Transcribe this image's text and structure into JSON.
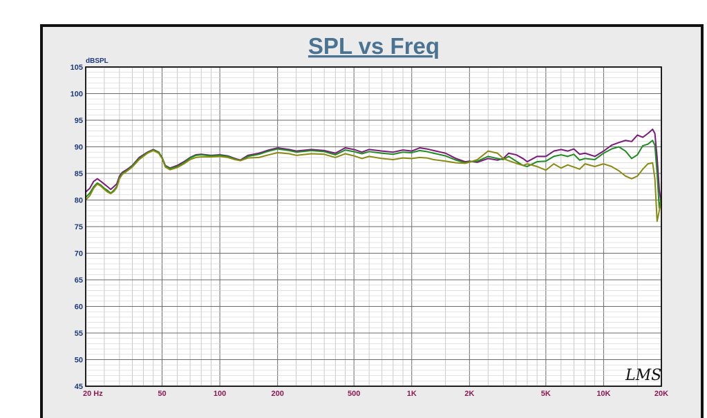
{
  "chart_data": {
    "type": "line",
    "title": "SPL vs Freq",
    "ylabel": "dBSPL",
    "xlabel": "",
    "xscale": "log",
    "xlim": [
      20,
      20000
    ],
    "ylim": [
      45,
      105
    ],
    "grid": true,
    "legend": "none",
    "y_ticks": [
      {
        "v": 105,
        "label": "105"
      },
      {
        "v": 100,
        "label": "100"
      },
      {
        "v": 95,
        "label": "95"
      },
      {
        "v": 90,
        "label": "90"
      },
      {
        "v": 85,
        "label": "85"
      },
      {
        "v": 80,
        "label": "80"
      },
      {
        "v": 75,
        "label": "75"
      },
      {
        "v": 70,
        "label": "70"
      },
      {
        "v": 65,
        "label": "65"
      },
      {
        "v": 60,
        "label": "60"
      },
      {
        "v": 55,
        "label": "55"
      },
      {
        "v": 50,
        "label": "50"
      },
      {
        "v": 45,
        "label": "45"
      }
    ],
    "x_ticks": [
      {
        "v": 20,
        "label": "20  Hz"
      },
      {
        "v": 50,
        "label": "50"
      },
      {
        "v": 100,
        "label": "100"
      },
      {
        "v": 200,
        "label": "200"
      },
      {
        "v": 500,
        "label": "500"
      },
      {
        "v": 1000,
        "label": "1K"
      },
      {
        "v": 2000,
        "label": "2K"
      },
      {
        "v": 5000,
        "label": "5K"
      },
      {
        "v": 10000,
        "label": "10K"
      },
      {
        "v": 20000,
        "label": "20K"
      }
    ],
    "watermark": "LMS",
    "series": [
      {
        "color": "#7a1a7a",
        "points": [
          [
            20,
            81.5
          ],
          [
            21,
            82.2
          ],
          [
            22,
            83.5
          ],
          [
            23,
            84
          ],
          [
            24,
            83.5
          ],
          [
            25,
            83
          ],
          [
            26,
            82.5
          ],
          [
            27,
            82
          ],
          [
            28,
            82.5
          ],
          [
            29,
            83
          ],
          [
            30,
            84.5
          ],
          [
            31,
            85.2
          ],
          [
            33,
            85.8
          ],
          [
            35,
            86.5
          ],
          [
            38,
            88
          ],
          [
            42,
            89
          ],
          [
            45,
            89.5
          ],
          [
            48,
            89
          ],
          [
            50,
            88
          ],
          [
            52,
            86.5
          ],
          [
            55,
            86
          ],
          [
            60,
            86.5
          ],
          [
            65,
            87.2
          ],
          [
            70,
            88
          ],
          [
            75,
            88.5
          ],
          [
            80,
            88.6
          ],
          [
            90,
            88.4
          ],
          [
            100,
            88.5
          ],
          [
            110,
            88.3
          ],
          [
            120,
            87.8
          ],
          [
            128,
            87.5
          ],
          [
            140,
            88.4
          ],
          [
            160,
            88.8
          ],
          [
            180,
            89.4
          ],
          [
            200,
            89.8
          ],
          [
            230,
            89.5
          ],
          [
            250,
            89.2
          ],
          [
            300,
            89.5
          ],
          [
            350,
            89.3
          ],
          [
            400,
            88.8
          ],
          [
            450,
            89.8
          ],
          [
            500,
            89.5
          ],
          [
            550,
            89
          ],
          [
            600,
            89.5
          ],
          [
            700,
            89.2
          ],
          [
            800,
            89
          ],
          [
            900,
            89.4
          ],
          [
            1000,
            89.2
          ],
          [
            1100,
            89.8
          ],
          [
            1200,
            89.6
          ],
          [
            1300,
            89.3
          ],
          [
            1500,
            88.8
          ],
          [
            1700,
            87.8
          ],
          [
            1900,
            87.2
          ],
          [
            2000,
            87.3
          ],
          [
            2200,
            87.1
          ],
          [
            2500,
            87.8
          ],
          [
            2800,
            87.5
          ],
          [
            3000,
            87.8
          ],
          [
            3200,
            88.8
          ],
          [
            3500,
            88.5
          ],
          [
            3800,
            87.8
          ],
          [
            4000,
            87.2
          ],
          [
            4500,
            88.2
          ],
          [
            5000,
            88.2
          ],
          [
            5500,
            89.2
          ],
          [
            6000,
            89.5
          ],
          [
            6500,
            89.2
          ],
          [
            7000,
            89.6
          ],
          [
            7500,
            88.6
          ],
          [
            8000,
            88.8
          ],
          [
            9000,
            88.2
          ],
          [
            10000,
            89.2
          ],
          [
            11000,
            90.3
          ],
          [
            12000,
            90.8
          ],
          [
            13000,
            91.2
          ],
          [
            14000,
            91
          ],
          [
            15000,
            92.2
          ],
          [
            16000,
            91.8
          ],
          [
            17000,
            92.5
          ],
          [
            18000,
            93.3
          ],
          [
            18500,
            92.5
          ],
          [
            19000,
            88
          ],
          [
            19500,
            82
          ],
          [
            20000,
            79
          ]
        ]
      },
      {
        "color": "#1f8a1f",
        "points": [
          [
            20,
            80.5
          ],
          [
            21,
            81.3
          ],
          [
            22,
            82.5
          ],
          [
            23,
            83.2
          ],
          [
            24,
            82.8
          ],
          [
            25,
            82.2
          ],
          [
            26,
            81.8
          ],
          [
            27,
            81.3
          ],
          [
            28,
            81.8
          ],
          [
            29,
            82.5
          ],
          [
            30,
            84.2
          ],
          [
            31,
            85
          ],
          [
            33,
            85.6
          ],
          [
            35,
            86.4
          ],
          [
            38,
            87.8
          ],
          [
            42,
            88.9
          ],
          [
            45,
            89.4
          ],
          [
            48,
            89
          ],
          [
            50,
            88
          ],
          [
            52,
            86.4
          ],
          [
            55,
            85.9
          ],
          [
            60,
            86.3
          ],
          [
            65,
            87
          ],
          [
            70,
            87.9
          ],
          [
            75,
            88.4
          ],
          [
            80,
            88.5
          ],
          [
            90,
            88.3
          ],
          [
            100,
            88.4
          ],
          [
            110,
            88.2
          ],
          [
            120,
            87.7
          ],
          [
            128,
            87.4
          ],
          [
            140,
            88.2
          ],
          [
            160,
            88.6
          ],
          [
            180,
            89.2
          ],
          [
            200,
            89.6
          ],
          [
            230,
            89.3
          ],
          [
            250,
            89
          ],
          [
            300,
            89.3
          ],
          [
            350,
            89.1
          ],
          [
            400,
            88.5
          ],
          [
            450,
            89.4
          ],
          [
            500,
            89.1
          ],
          [
            550,
            88.7
          ],
          [
            600,
            89.1
          ],
          [
            700,
            88.8
          ],
          [
            800,
            88.6
          ],
          [
            900,
            89
          ],
          [
            1000,
            88.9
          ],
          [
            1100,
            89.3
          ],
          [
            1200,
            89.1
          ],
          [
            1300,
            88.8
          ],
          [
            1500,
            88.3
          ],
          [
            1700,
            87.5
          ],
          [
            1900,
            87
          ],
          [
            2000,
            87.2
          ],
          [
            2200,
            87.3
          ],
          [
            2500,
            88.2
          ],
          [
            2800,
            87.8
          ],
          [
            3000,
            87.6
          ],
          [
            3200,
            88.2
          ],
          [
            3500,
            87.3
          ],
          [
            3800,
            86.5
          ],
          [
            4000,
            86.3
          ],
          [
            4500,
            87.2
          ],
          [
            5000,
            87.3
          ],
          [
            5500,
            88.2
          ],
          [
            6000,
            88.5
          ],
          [
            6500,
            88.2
          ],
          [
            7000,
            88.6
          ],
          [
            7500,
            87.5
          ],
          [
            8000,
            87.8
          ],
          [
            9000,
            87.6
          ],
          [
            10000,
            88.8
          ],
          [
            11000,
            89.6
          ],
          [
            12000,
            90
          ],
          [
            13000,
            89.2
          ],
          [
            14000,
            87.8
          ],
          [
            15000,
            88.5
          ],
          [
            16000,
            90.2
          ],
          [
            17000,
            90.5
          ],
          [
            18000,
            91.2
          ],
          [
            18500,
            90.3
          ],
          [
            19000,
            85
          ],
          [
            19500,
            78.5
          ],
          [
            20000,
            80.5
          ]
        ]
      },
      {
        "color": "#8a8a12",
        "points": [
          [
            20,
            80
          ],
          [
            21,
            80.8
          ],
          [
            22,
            82.2
          ],
          [
            23,
            83
          ],
          [
            24,
            82.6
          ],
          [
            25,
            82
          ],
          [
            26,
            81.5
          ],
          [
            27,
            81.2
          ],
          [
            28,
            81.6
          ],
          [
            29,
            82.3
          ],
          [
            30,
            84
          ],
          [
            31,
            84.8
          ],
          [
            33,
            85.5
          ],
          [
            35,
            86.2
          ],
          [
            38,
            87.6
          ],
          [
            42,
            88.8
          ],
          [
            45,
            89.3
          ],
          [
            48,
            88.8
          ],
          [
            50,
            87.8
          ],
          [
            52,
            86.2
          ],
          [
            55,
            85.7
          ],
          [
            60,
            86.1
          ],
          [
            65,
            86.8
          ],
          [
            70,
            87.6
          ],
          [
            75,
            88
          ],
          [
            80,
            88.1
          ],
          [
            90,
            88.1
          ],
          [
            100,
            88.2
          ],
          [
            110,
            88
          ],
          [
            120,
            87.6
          ],
          [
            128,
            87.4
          ],
          [
            140,
            87.9
          ],
          [
            160,
            88
          ],
          [
            180,
            88.5
          ],
          [
            200,
            88.9
          ],
          [
            230,
            88.7
          ],
          [
            250,
            88.4
          ],
          [
            300,
            88.7
          ],
          [
            350,
            88.6
          ],
          [
            400,
            88
          ],
          [
            450,
            88.7
          ],
          [
            500,
            88.3
          ],
          [
            550,
            87.8
          ],
          [
            600,
            88.2
          ],
          [
            700,
            87.8
          ],
          [
            800,
            87.6
          ],
          [
            900,
            87.9
          ],
          [
            1000,
            87.8
          ],
          [
            1100,
            88
          ],
          [
            1200,
            87.9
          ],
          [
            1300,
            87.6
          ],
          [
            1500,
            87.3
          ],
          [
            1700,
            87
          ],
          [
            1900,
            86.9
          ],
          [
            2000,
            87.1
          ],
          [
            2200,
            87.6
          ],
          [
            2500,
            89.2
          ],
          [
            2800,
            88.8
          ],
          [
            3000,
            87.8
          ],
          [
            3200,
            87.4
          ],
          [
            3500,
            86.9
          ],
          [
            3800,
            86.5
          ],
          [
            4000,
            86.8
          ],
          [
            4500,
            86.3
          ],
          [
            5000,
            85.6
          ],
          [
            5500,
            86.8
          ],
          [
            6000,
            86
          ],
          [
            6500,
            86.6
          ],
          [
            7000,
            86.2
          ],
          [
            7500,
            85.8
          ],
          [
            8000,
            86.8
          ],
          [
            9000,
            86.3
          ],
          [
            10000,
            86.8
          ],
          [
            11000,
            86.3
          ],
          [
            12000,
            85.5
          ],
          [
            13000,
            84.5
          ],
          [
            14000,
            84
          ],
          [
            15000,
            84.5
          ],
          [
            16000,
            85.8
          ],
          [
            17000,
            86.8
          ],
          [
            18000,
            87
          ],
          [
            18500,
            84
          ],
          [
            19000,
            76
          ],
          [
            19500,
            78
          ],
          [
            20000,
            80
          ]
        ]
      }
    ]
  }
}
